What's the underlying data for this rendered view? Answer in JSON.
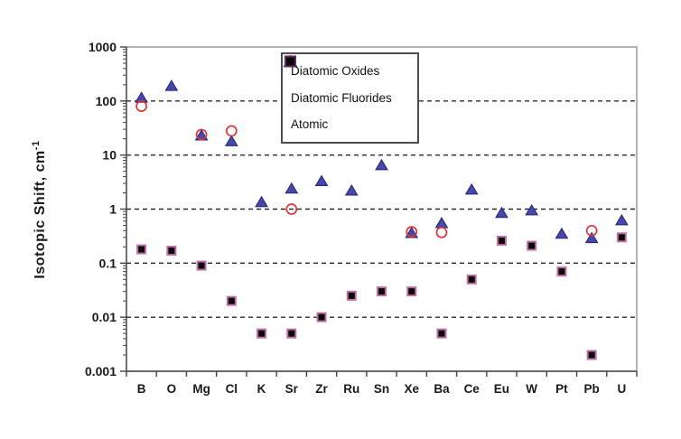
{
  "figure": {
    "background": "#ffffff",
    "title": ""
  },
  "chart_data": {
    "type": "scatter",
    "y_scale": "log",
    "ylabel": "Isotopic Shift, cm⁻¹",
    "ylabel_main": "Isotopic Shift,  cm",
    "ylabel_sup": "-1",
    "xlabel": "",
    "ylim": [
      0.001,
      1000
    ],
    "y_ticks": [
      "1000",
      "100",
      "10",
      "1",
      "0.1",
      "0.01",
      "0.001"
    ],
    "gridline_values": [
      100,
      10,
      1,
      0.1,
      0.01
    ],
    "grid_style": "dashed",
    "grid_color": "#2b2b2b",
    "frame_color": "#8a8a8a",
    "axis_color": "#444444",
    "legend_position": "top-center",
    "categories": [
      "B",
      "O",
      "Mg",
      "Cl",
      "K",
      "Sr",
      "Zr",
      "Ru",
      "Sn",
      "Xe",
      "Ba",
      "Ce",
      "Eu",
      "W",
      "Pt",
      "Pb",
      "U"
    ],
    "series": [
      {
        "name": "Diatomic Oxides",
        "marker": "filled-triangle",
        "color": "#4848a8",
        "edge_color": "#23237a",
        "values": [
          115,
          190,
          23,
          18,
          1.35,
          2.4,
          3.3,
          2.2,
          6.5,
          0.36,
          0.55,
          2.3,
          0.85,
          0.95,
          0.35,
          0.29,
          0.62
        ]
      },
      {
        "name": "Diatomic Fluorides",
        "marker": "open-circle",
        "color": "#e03434",
        "edge_color": "#e03434",
        "values": [
          80,
          null,
          24,
          28,
          null,
          1.0,
          null,
          null,
          null,
          0.38,
          0.37,
          null,
          null,
          null,
          null,
          0.4,
          null
        ]
      },
      {
        "name": "Atomic",
        "marker": "filled-square",
        "color": "#0a0a0a",
        "edge_color": "#bf6fa5",
        "values": [
          0.18,
          0.17,
          0.09,
          0.02,
          0.005,
          0.005,
          0.01,
          0.025,
          0.03,
          0.03,
          0.005,
          0.05,
          0.26,
          0.21,
          0.07,
          0.002,
          0.3
        ]
      }
    ]
  }
}
